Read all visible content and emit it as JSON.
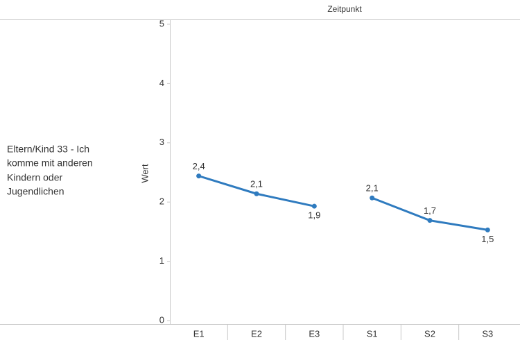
{
  "chart_data": {
    "type": "line",
    "column_header": "Zeitpunkt",
    "row_header": [
      "Eltern/Kind 33 - Ich",
      "komme mit anderen",
      "Kindern oder",
      "Jugendlichen"
    ],
    "y_label": "Wert",
    "categories": [
      "E1",
      "E2",
      "E3",
      "S1",
      "S2",
      "S3"
    ],
    "series": [
      {
        "color": "#2f7bbf",
        "values": [
          2.44,
          2.14,
          1.93,
          null,
          null,
          null
        ],
        "value_labels": [
          "2,4",
          "2,1",
          "1,9",
          null,
          null,
          null
        ]
      },
      {
        "color": "#2f7bbf",
        "values": [
          null,
          null,
          null,
          2.07,
          1.69,
          1.53
        ],
        "value_labels": [
          null,
          null,
          null,
          "2,1",
          "1,7",
          "1,5"
        ]
      }
    ],
    "ylim": [
      0,
      5
    ],
    "yticks": [
      0,
      1,
      2,
      3,
      4,
      5
    ],
    "grid": false
  }
}
